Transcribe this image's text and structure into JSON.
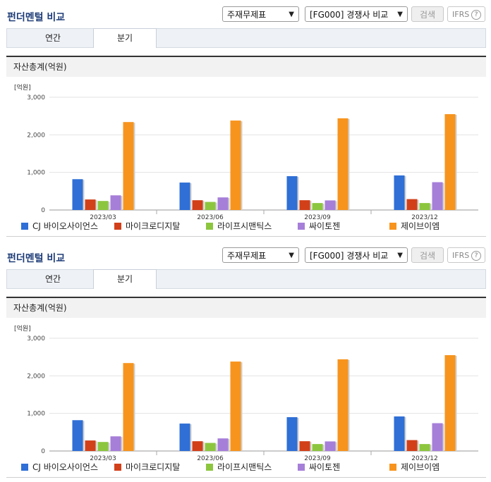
{
  "panels": [
    {
      "title": "펀더멘털 비교",
      "select_statement": "주재무제표",
      "select_compare": "[FG000] 경쟁사 비교",
      "search_label": "검색",
      "ifrs_label": "IFRS",
      "ifrs_help": "?",
      "tabs": [
        {
          "label": "연간",
          "active": false
        },
        {
          "label": "분기",
          "active": true
        }
      ],
      "section_title": "자산총계(억원)"
    },
    {
      "title": "펀더멘털 비교",
      "select_statement": "주재무제표",
      "select_compare": "[FG000] 경쟁사 비교",
      "search_label": "검색",
      "ifrs_label": "IFRS",
      "ifrs_help": "?",
      "tabs": [
        {
          "label": "연간",
          "active": false
        },
        {
          "label": "분기",
          "active": true
        }
      ],
      "section_title": "자산총계(억원)"
    }
  ],
  "chart_data": [
    {
      "type": "bar",
      "unit_label": "[억원]",
      "categories": [
        "2023/03",
        "2023/06",
        "2023/09",
        "2023/12"
      ],
      "ylim": [
        0,
        3000
      ],
      "yticks": [
        "0",
        "1,000",
        "2,000",
        "3,000"
      ],
      "legend_position": "bottom",
      "series": [
        {
          "name": "CJ 바이오사이언스",
          "color": "#2f6fd6",
          "values": [
            820,
            730,
            900,
            920
          ]
        },
        {
          "name": "마이크로디지탈",
          "color": "#d2401a",
          "values": [
            280,
            260,
            260,
            290
          ]
        },
        {
          "name": "라이프시맨틱스",
          "color": "#8cc63f",
          "values": [
            240,
            215,
            185,
            185
          ]
        },
        {
          "name": "싸이토젠",
          "color": "#a67fd9",
          "values": [
            390,
            335,
            255,
            740
          ]
        },
        {
          "name": "제이브이엠",
          "color": "#f7941d",
          "values": [
            2340,
            2380,
            2440,
            2550
          ]
        }
      ]
    },
    {
      "type": "bar",
      "unit_label": "[억원]",
      "categories": [
        "2023/03",
        "2023/06",
        "2023/09",
        "2023/12"
      ],
      "ylim": [
        0,
        3000
      ],
      "yticks": [
        "0",
        "1,000",
        "2,000",
        "3,000"
      ],
      "legend_position": "bottom",
      "series": [
        {
          "name": "CJ 바이오사이언스",
          "color": "#2f6fd6",
          "values": [
            820,
            730,
            900,
            920
          ]
        },
        {
          "name": "마이크로디지탈",
          "color": "#d2401a",
          "values": [
            280,
            260,
            260,
            290
          ]
        },
        {
          "name": "라이프시맨틱스",
          "color": "#8cc63f",
          "values": [
            240,
            215,
            185,
            185
          ]
        },
        {
          "name": "싸이토젠",
          "color": "#a67fd9",
          "values": [
            390,
            335,
            255,
            740
          ]
        },
        {
          "name": "제이브이엠",
          "color": "#f7941d",
          "values": [
            2340,
            2380,
            2440,
            2550
          ]
        }
      ]
    }
  ]
}
